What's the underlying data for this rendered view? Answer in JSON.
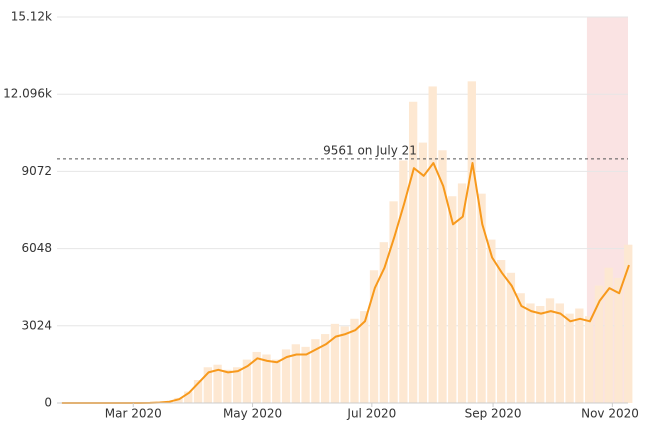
{
  "chart_data": {
    "type": "bar-line",
    "x": [
      "2020-01-22",
      "2020-01-27",
      "2020-02-01",
      "2020-02-06",
      "2020-02-11",
      "2020-02-16",
      "2020-02-21",
      "2020-02-26",
      "2020-03-02",
      "2020-03-07",
      "2020-03-12",
      "2020-03-17",
      "2020-03-22",
      "2020-03-27",
      "2020-04-01",
      "2020-04-06",
      "2020-04-11",
      "2020-04-16",
      "2020-04-21",
      "2020-04-26",
      "2020-05-01",
      "2020-05-06",
      "2020-05-11",
      "2020-05-16",
      "2020-05-21",
      "2020-05-26",
      "2020-05-31",
      "2020-06-05",
      "2020-06-10",
      "2020-06-15",
      "2020-06-20",
      "2020-06-25",
      "2020-06-30",
      "2020-07-05",
      "2020-07-10",
      "2020-07-15",
      "2020-07-20",
      "2020-07-25",
      "2020-07-30",
      "2020-08-04",
      "2020-08-09",
      "2020-08-14",
      "2020-08-19",
      "2020-08-24",
      "2020-08-29",
      "2020-09-03",
      "2020-09-08",
      "2020-09-13",
      "2020-09-18",
      "2020-09-23",
      "2020-09-28",
      "2020-10-03",
      "2020-10-08",
      "2020-10-13",
      "2020-10-18",
      "2020-10-23",
      "2020-10-28",
      "2020-11-02",
      "2020-11-07"
    ],
    "series": [
      {
        "kind": "bar",
        "color": "#fde8d2",
        "values": [
          0,
          0,
          0,
          0,
          0,
          0,
          0,
          0,
          0,
          10,
          30,
          60,
          200,
          450,
          900,
          1400,
          1500,
          1300,
          1400,
          1700,
          2000,
          1900,
          1700,
          2100,
          2300,
          2200,
          2500,
          2700,
          3100,
          3000,
          3300,
          3600,
          5200,
          6300,
          7900,
          9500,
          11800,
          10200,
          12400,
          9900,
          8100,
          8600,
          12600,
          8200,
          6400,
          5600,
          5100,
          4300,
          3900,
          3800,
          4100,
          3900,
          3500,
          3700,
          3400,
          4600,
          5300,
          4900,
          6200
        ]
      },
      {
        "kind": "line",
        "color": "#f7991c",
        "values": [
          0,
          0,
          0,
          0,
          0,
          0,
          0,
          0,
          0,
          5,
          20,
          50,
          150,
          400,
          800,
          1200,
          1300,
          1200,
          1250,
          1450,
          1750,
          1650,
          1600,
          1800,
          1900,
          1900,
          2100,
          2300,
          2600,
          2700,
          2850,
          3200,
          4500,
          5300,
          6500,
          7800,
          9200,
          8900,
          9400,
          8500,
          7000,
          7300,
          9400,
          7000,
          5700,
          5100,
          4600,
          3800,
          3600,
          3500,
          3600,
          3500,
          3200,
          3300,
          3200,
          4000,
          4500,
          4300,
          5400
        ]
      }
    ],
    "xlim": [
      "2020-01-22",
      "2020-11-09"
    ],
    "xticks": [
      {
        "value": "2020-03-01",
        "label": "Mar 2020"
      },
      {
        "value": "2020-05-01",
        "label": "May 2020"
      },
      {
        "value": "2020-07-01",
        "label": "Jul 2020"
      },
      {
        "value": "2020-09-01",
        "label": "Sep 2020"
      },
      {
        "value": "2020-11-01",
        "label": "Nov 2020"
      }
    ],
    "ylim": [
      0,
      15120
    ],
    "yticks": [
      0,
      3024,
      6048,
      9072,
      {
        "value": 12096,
        "label": "12.096k"
      },
      {
        "value": 15120,
        "label": "15.12k"
      }
    ],
    "grid": true,
    "reference_line": {
      "value": 9561,
      "label": "9561 on July 21"
    },
    "highlight": {
      "x": [
        "2020-10-19",
        "2020-11-09"
      ],
      "color": "#f9dcdc"
    }
  }
}
